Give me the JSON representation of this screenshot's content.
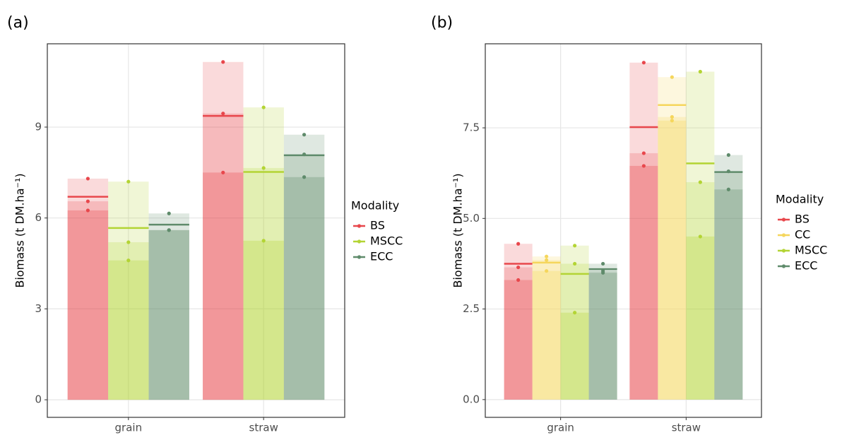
{
  "chart_data": [
    {
      "type": "bar",
      "panel_label": "(a)",
      "ylabel": "Biomass (t DM.ha⁻¹)",
      "legend_title": "Modality",
      "legend": "right",
      "grid": true,
      "categories": [
        "grain",
        "straw"
      ],
      "ylim": [
        -0.58,
        11.75
      ],
      "yticks": [
        0,
        3,
        6,
        9
      ],
      "series": [
        {
          "name": "BS",
          "color": "#e8474c",
          "min": [
            6.25,
            7.5
          ],
          "median": [
            6.55,
            9.45
          ],
          "max": [
            7.3,
            11.15
          ],
          "mean": [
            6.7,
            9.37
          ]
        },
        {
          "name": "MSCC",
          "color": "#b3d434",
          "min": [
            4.6,
            5.25
          ],
          "median": [
            5.2,
            7.65
          ],
          "max": [
            7.2,
            9.65
          ],
          "mean": [
            5.67,
            7.52
          ]
        },
        {
          "name": "ECC",
          "color": "#5f8b6b",
          "min": [
            5.6,
            7.35
          ],
          "median": [
            5.6,
            8.1
          ],
          "max": [
            6.15,
            8.75
          ],
          "mean": [
            5.78,
            8.07
          ]
        }
      ]
    },
    {
      "type": "bar",
      "panel_label": "(b)",
      "ylabel": "Biomass (t DM.ha⁻¹)",
      "legend_title": "Modality",
      "legend": "right",
      "grid": true,
      "categories": [
        "grain",
        "straw"
      ],
      "ylim": [
        -0.49,
        9.82
      ],
      "yticks": [
        {
          "value": 0,
          "label": "0.0"
        },
        {
          "value": 2.5,
          "label": "2.5"
        },
        {
          "value": 5,
          "label": "5.0"
        },
        {
          "value": 7.5,
          "label": "7.5"
        }
      ],
      "series": [
        {
          "name": "BS",
          "color": "#e8474c",
          "min": [
            3.3,
            6.45
          ],
          "median": [
            3.65,
            6.8
          ],
          "max": [
            4.3,
            9.3
          ],
          "mean": [
            3.75,
            7.52
          ]
        },
        {
          "name": "CC",
          "color": "#f5d65c",
          "min": [
            3.55,
            7.7
          ],
          "median": [
            3.85,
            7.8
          ],
          "max": [
            3.95,
            8.9
          ],
          "mean": [
            3.78,
            8.13
          ]
        },
        {
          "name": "MSCC",
          "color": "#b3d434",
          "min": [
            2.4,
            4.5
          ],
          "median": [
            3.75,
            6.0
          ],
          "max": [
            4.25,
            9.05
          ],
          "mean": [
            3.47,
            6.52
          ]
        },
        {
          "name": "ECC",
          "color": "#5f8b6b",
          "min": [
            3.5,
            5.8
          ],
          "median": [
            3.55,
            6.3
          ],
          "max": [
            3.75,
            6.75
          ],
          "mean": [
            3.6,
            6.28
          ]
        }
      ]
    }
  ]
}
